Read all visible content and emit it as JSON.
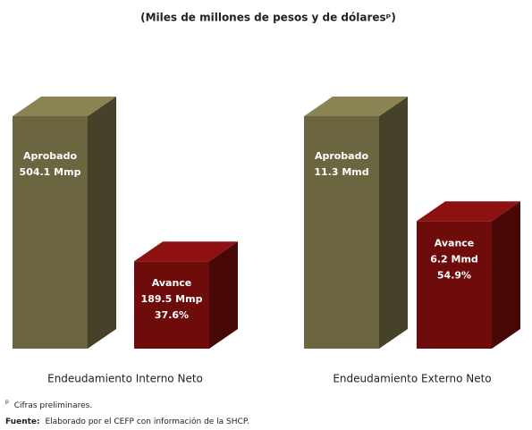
{
  "chart_data": {
    "type": "bar3d",
    "title": "(Miles de millones de pesos y de dólaresᵖ)",
    "categories": [
      "Endeudamiento Interno Neto",
      "Endeudamiento Externo Neto"
    ],
    "series": [
      {
        "name": "Aprobado",
        "color": "#6b6540",
        "values": [
          504.1,
          11.3
        ],
        "value_labels": [
          "504.1 Mmp",
          "11.3 Mmd"
        ]
      },
      {
        "name": "Avance",
        "color": "#6e0c0c",
        "values": [
          189.5,
          6.2
        ],
        "value_labels": [
          "189.5 Mmp",
          "6.2 Mmd"
        ],
        "percent": [
          37.6,
          54.9
        ],
        "percent_labels": [
          "37.6%",
          "54.9%"
        ]
      }
    ],
    "footnote": {
      "mark": "p",
      "text": "Cifras preliminares."
    },
    "source": {
      "label": "Fuente:",
      "text": "Elaborado por el CEFP con información de la SHCP."
    }
  }
}
